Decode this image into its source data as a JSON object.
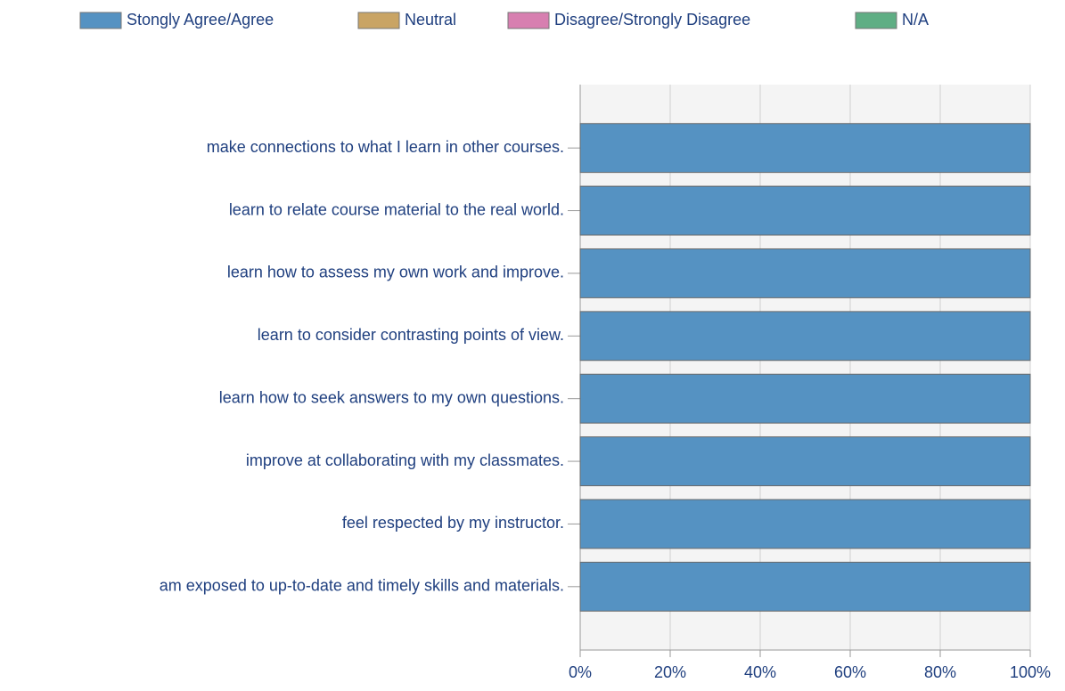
{
  "chart_data": {
    "type": "stacked-bar-horizontal",
    "categories": [
      "make connections to what I learn in other courses.",
      "learn to relate course material to the real world.",
      "learn how to assess my own work and improve.",
      "learn to consider contrasting points of view.",
      "learn how to seek answers to my own questions.",
      "improve at collaborating with my classmates.",
      "feel respected by my instructor.",
      "am exposed to up-to-date and timely skills and materials."
    ],
    "series": [
      {
        "name": "Stongly Agree/Agree",
        "color": "#5592c2",
        "values": [
          100,
          100,
          100,
          100,
          100,
          100,
          100,
          100
        ]
      },
      {
        "name": "Neutral",
        "color": "#c9a464",
        "values": [
          0,
          0,
          0,
          0,
          0,
          0,
          0,
          0
        ]
      },
      {
        "name": "Disagree/Strongly Disagree",
        "color": "#d77fb0",
        "values": [
          0,
          0,
          0,
          0,
          0,
          0,
          0,
          0
        ]
      },
      {
        "name": "N/A",
        "color": "#5fae84",
        "values": [
          0,
          0,
          0,
          0,
          0,
          0,
          0,
          0
        ]
      }
    ],
    "xlim": [
      0,
      100
    ],
    "xticks": [
      {
        "value": 0,
        "label": "0%"
      },
      {
        "value": 20,
        "label": "20%"
      },
      {
        "value": 40,
        "label": "40%"
      },
      {
        "value": 60,
        "label": "60%"
      },
      {
        "value": 80,
        "label": "80%"
      },
      {
        "value": 100,
        "label": "100%"
      }
    ],
    "grid": true,
    "legend": "top"
  }
}
